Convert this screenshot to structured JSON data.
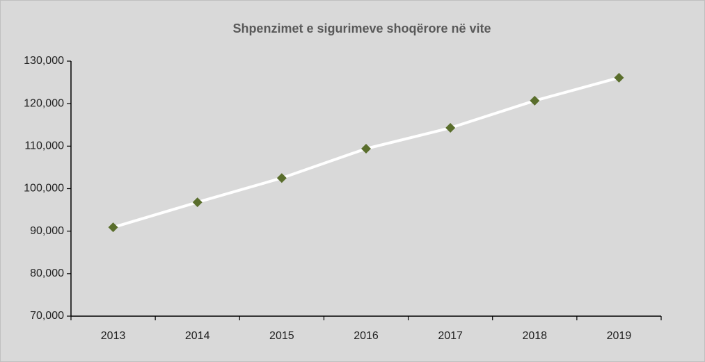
{
  "chart_data": {
    "type": "line",
    "title": "Shpenzimet e sigurimeve shoqërore në vite",
    "categories": [
      "2013",
      "2014",
      "2015",
      "2016",
      "2017",
      "2018",
      "2019"
    ],
    "series": [
      {
        "name": "Shpenzimet",
        "line_color": "#ffffff",
        "color": "#5a6e2c",
        "values": [
          90900,
          96800,
          102500,
          109400,
          114300,
          120700,
          126100
        ]
      }
    ],
    "ylim": [
      70000,
      130000
    ],
    "yticks": [
      {
        "value": 70000,
        "label": "70,000"
      },
      {
        "value": 80000,
        "label": "80,000"
      },
      {
        "value": 90000,
        "label": "90,000"
      },
      {
        "value": 100000,
        "label": "100,000"
      },
      {
        "value": 110000,
        "label": "110,000"
      },
      {
        "value": 120000,
        "label": "120,000"
      },
      {
        "value": 130000,
        "label": "130,000"
      }
    ],
    "grid": false
  }
}
